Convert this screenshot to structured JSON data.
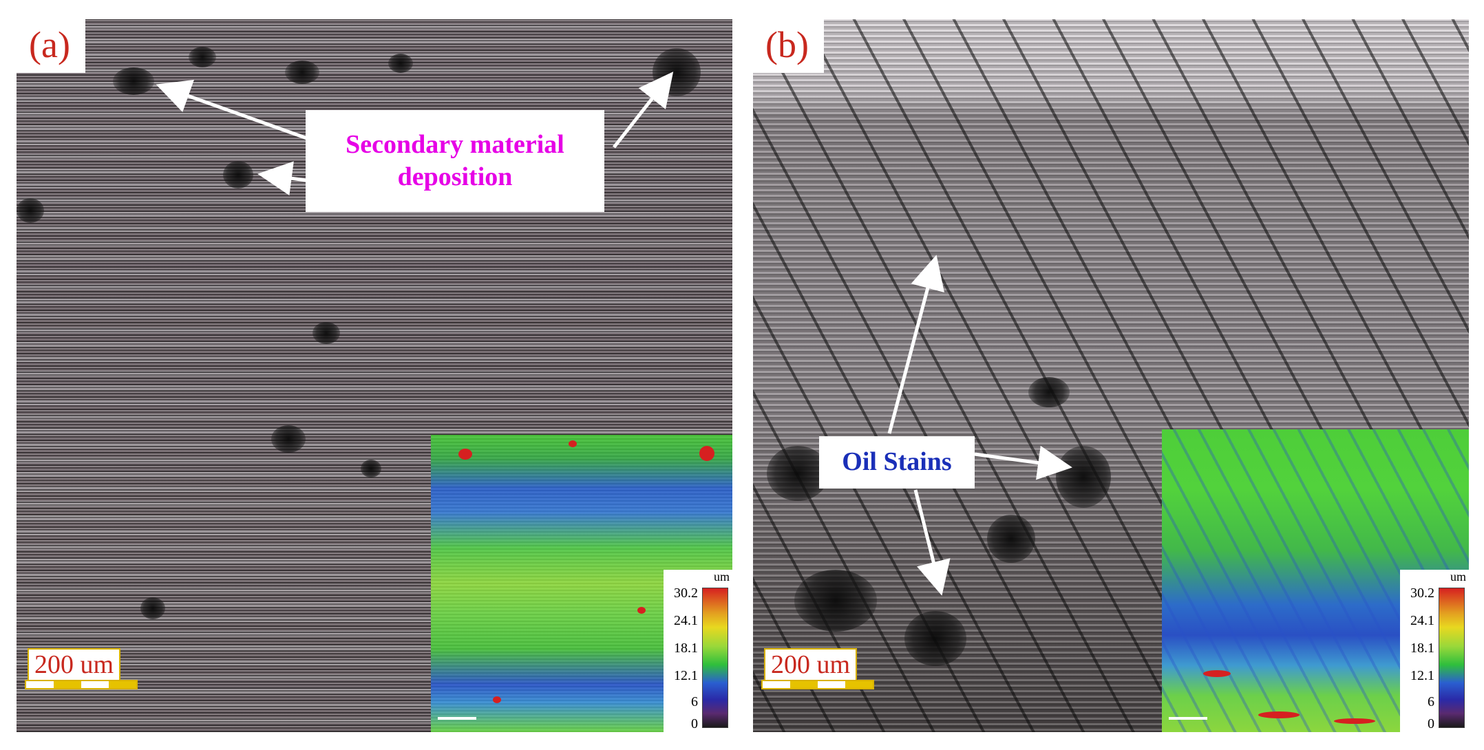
{
  "panels": [
    {
      "letter": "(a)",
      "callout": {
        "line1": "Secondary material",
        "line2": "deposition"
      },
      "scale_bar": "200 um",
      "colorbar": {
        "unit": "um",
        "ticks": [
          "30.2",
          "24.1",
          "18.1",
          "12.1",
          "6",
          "0"
        ]
      }
    },
    {
      "letter": "(b)",
      "callout": {
        "line1": "Oil Stains"
      },
      "scale_bar": "200 um",
      "colorbar": {
        "unit": "um",
        "ticks": [
          "30.2",
          "24.1",
          "18.1",
          "12.1",
          "6",
          "0"
        ]
      }
    }
  ],
  "colors": {
    "letter": "#c8281e",
    "callout_a": "#e600e6",
    "callout_b": "#1a2fb8",
    "arrow": "#ffffff",
    "scale_bar_accent": "#e6c200"
  }
}
